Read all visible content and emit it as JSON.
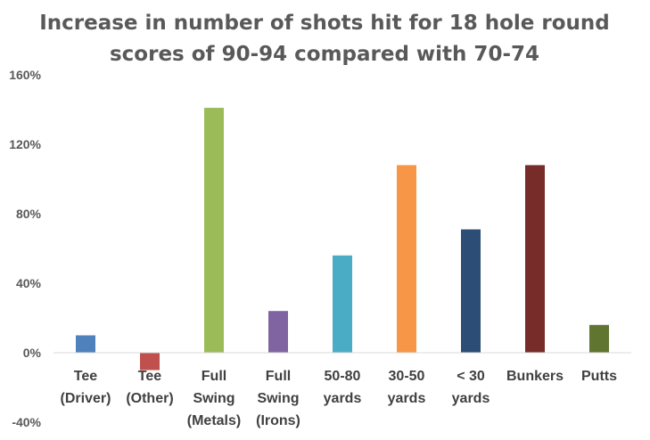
{
  "chart_data": {
    "type": "bar",
    "title_lines": [
      "Increase in number of shots hit for 18 hole round",
      "scores of 90-94 compared with 70-74"
    ],
    "categories": [
      [
        "Tee",
        "(Driver)"
      ],
      [
        "Tee",
        "(Other)"
      ],
      [
        "Full",
        "Swing",
        "(Metals)"
      ],
      [
        "Full",
        "Swing",
        "(Irons)"
      ],
      [
        "50-80",
        "yards"
      ],
      [
        "30-50",
        "yards"
      ],
      [
        "< 30",
        "yards"
      ],
      [
        "Bunkers"
      ],
      [
        "Putts"
      ]
    ],
    "values": [
      10,
      -10,
      141,
      24,
      56,
      108,
      71,
      108,
      16
    ],
    "colors": [
      "#4f81bd",
      "#c0504d",
      "#9bbb59",
      "#8064a2",
      "#4bacc6",
      "#f79646",
      "#2c4d75",
      "#772c2a",
      "#5f7530"
    ],
    "ylim": [
      -40,
      160
    ],
    "yticks": [
      -40,
      0,
      40,
      80,
      120,
      160
    ],
    "ytick_suffix": "%",
    "grid": false
  }
}
